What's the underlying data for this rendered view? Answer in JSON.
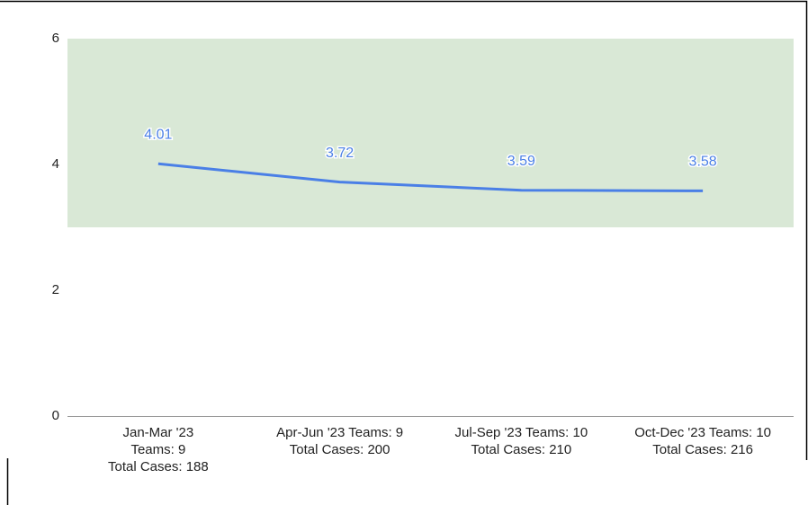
{
  "chart_data": {
    "type": "line",
    "categories": [
      [
        "Jan-Mar '23",
        "Teams: 9",
        "Total Cases: 188"
      ],
      [
        "Apr-Jun '23 Teams: 9",
        "Total Cases: 200"
      ],
      [
        "Jul-Sep '23 Teams: 10",
        "Total Cases: 210"
      ],
      [
        "Oct-Dec '23 Teams: 10",
        "Total Cases: 216"
      ]
    ],
    "values": [
      4.01,
      3.72,
      3.59,
      3.58
    ],
    "color": "#4a7fe6",
    "ylim": [
      0,
      6
    ],
    "yticks": [
      0,
      2,
      4,
      6
    ],
    "band": {
      "from": 3,
      "to": 6,
      "color": "#d9e8d6"
    },
    "grid": false
  }
}
